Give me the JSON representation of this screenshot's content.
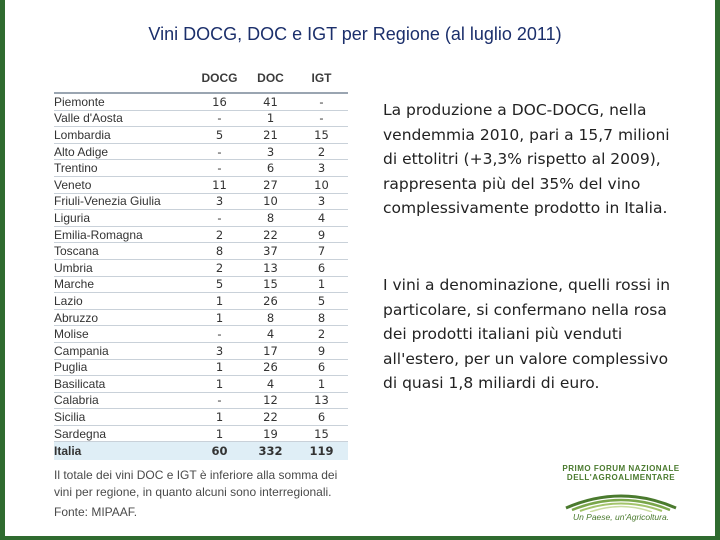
{
  "slide": {
    "title": "Vini DOCG, DOC e IGT per Regione (al luglio 2011)"
  },
  "table": {
    "headers": [
      "DOCG",
      "DOC",
      "IGT"
    ],
    "rows": [
      {
        "region": "Piemonte",
        "docg": "16",
        "doc": "41",
        "igt": "-"
      },
      {
        "region": "Valle d'Aosta",
        "docg": "-",
        "doc": "1",
        "igt": "-"
      },
      {
        "region": "Lombardia",
        "docg": "5",
        "doc": "21",
        "igt": "15"
      },
      {
        "region": "Alto Adige",
        "docg": "-",
        "doc": "3",
        "igt": "2"
      },
      {
        "region": "Trentino",
        "docg": "-",
        "doc": "6",
        "igt": "3"
      },
      {
        "region": "Veneto",
        "docg": "11",
        "doc": "27",
        "igt": "10"
      },
      {
        "region": "Friuli-Venezia Giulia",
        "docg": "3",
        "doc": "10",
        "igt": "3"
      },
      {
        "region": "Liguria",
        "docg": "-",
        "doc": "8",
        "igt": "4"
      },
      {
        "region": "Emilia-Romagna",
        "docg": "2",
        "doc": "22",
        "igt": "9"
      },
      {
        "region": "Toscana",
        "docg": "8",
        "doc": "37",
        "igt": "7"
      },
      {
        "region": "Umbria",
        "docg": "2",
        "doc": "13",
        "igt": "6"
      },
      {
        "region": "Marche",
        "docg": "5",
        "doc": "15",
        "igt": "1"
      },
      {
        "region": "Lazio",
        "docg": "1",
        "doc": "26",
        "igt": "5"
      },
      {
        "region": "Abruzzo",
        "docg": "1",
        "doc": "8",
        "igt": "8"
      },
      {
        "region": "Molise",
        "docg": "-",
        "doc": "4",
        "igt": "2"
      },
      {
        "region": "Campania",
        "docg": "3",
        "doc": "17",
        "igt": "9"
      },
      {
        "region": "Puglia",
        "docg": "1",
        "doc": "26",
        "igt": "6"
      },
      {
        "region": "Basilicata",
        "docg": "1",
        "doc": "4",
        "igt": "1"
      },
      {
        "region": "Calabria",
        "docg": "-",
        "doc": "12",
        "igt": "13"
      },
      {
        "region": "Sicilia",
        "docg": "1",
        "doc": "22",
        "igt": "6"
      },
      {
        "region": "Sardegna",
        "docg": "1",
        "doc": "19",
        "igt": "15"
      },
      {
        "region": "Italia",
        "docg": "60",
        "doc": "332",
        "igt": "119"
      }
    ],
    "note": "Il totale dei vini DOC e IGT è inferiore alla somma dei vini per regione, in quanto alcuni sono interregionali.",
    "source": "Fonte: MIPAAF."
  },
  "body": {
    "paragraph_1": "La produzione a DOC-DOCG, nella vendemmia 2010, pari a 15,7 milioni di ettolitri (+3,3% rispetto al 2009), rappresenta più del 35% del vino complessivamente prodotto in Italia.",
    "paragraph_2": "I vini a denominazione, quelli rossi in particolare, si confermano nella rosa dei prodotti italiani più venduti all'estero, per un valore complessivo di quasi 1,8 miliardi di euro."
  },
  "logo": {
    "line_1": "PRIMO FORUM NAZIONALE",
    "line_2": "DELL'AGROALIMENTARE",
    "tagline": "Un Paese, un'Agricoltura."
  },
  "colors": {
    "frame": "#2f6b2f",
    "title": "#1b2f6b",
    "total_row": "#dfeef6",
    "logo": "#4a7a2e"
  }
}
